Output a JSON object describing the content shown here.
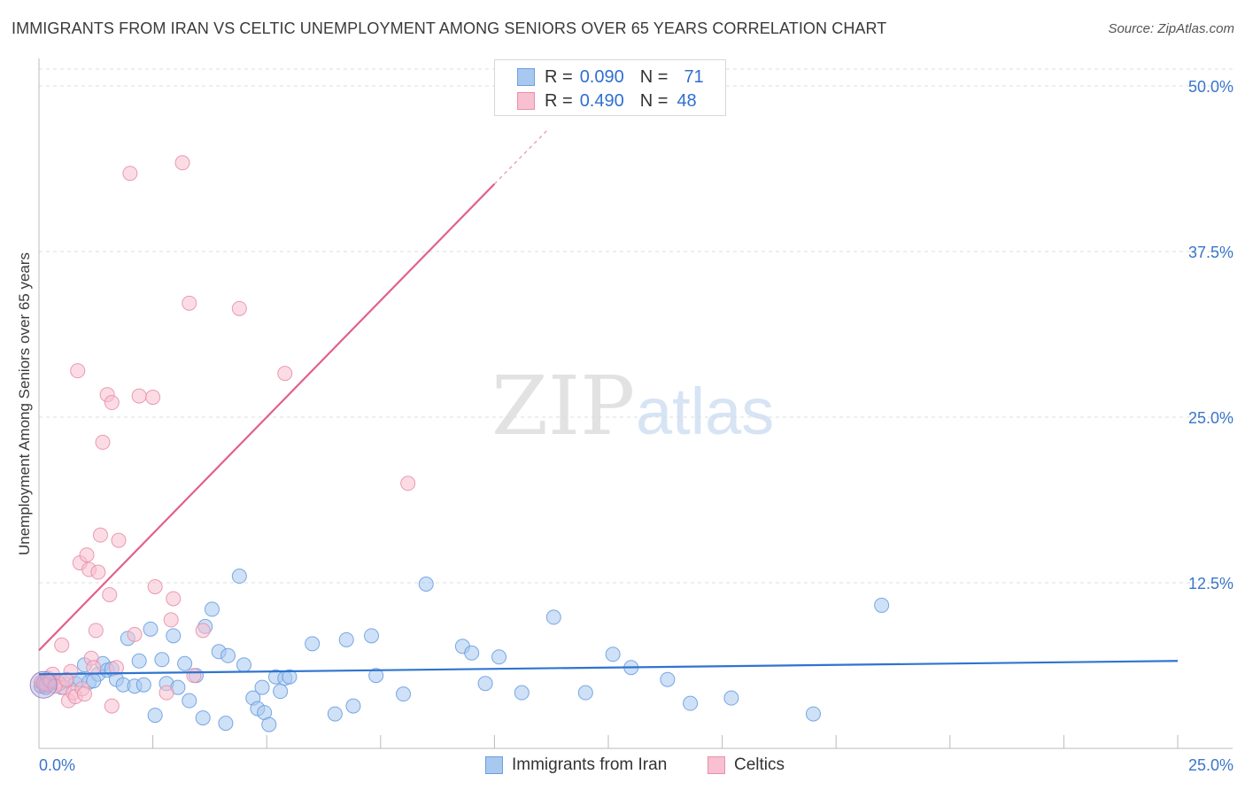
{
  "title": "IMMIGRANTS FROM IRAN VS CELTIC UNEMPLOYMENT AMONG SENIORS OVER 65 YEARS CORRELATION CHART",
  "source": "Source: ZipAtlas.com",
  "watermark": {
    "zip": "ZIP",
    "atlas": "atlas"
  },
  "legend_top": [
    {
      "r_label": "R =",
      "r_value": "0.090",
      "n_label": "N =",
      "n_value": "71",
      "color": "#a8c8f0",
      "border": "#6a9fe0"
    },
    {
      "r_label": "R =",
      "r_value": "0.490",
      "n_label": "N =",
      "n_value": "48",
      "color": "#f8c0d0",
      "border": "#e890ab"
    }
  ],
  "legend_bottom": [
    {
      "label": "Immigrants from Iran",
      "color": "#a8c8f0",
      "border": "#6a9fe0"
    },
    {
      "label": "Celtics",
      "color": "#f8c0d0",
      "border": "#e890ab"
    }
  ],
  "chart_data": {
    "type": "scatter",
    "title": "IMMIGRANTS FROM IRAN VS CELTIC UNEMPLOYMENT AMONG SENIORS OVER 65 YEARS CORRELATION CHART",
    "xlabel": "",
    "ylabel": "Unemployment Among Seniors over 65 years",
    "xlim": [
      0,
      25
    ],
    "ylim": [
      0,
      50
    ],
    "x_tick_labels": [
      "0.0%",
      "25.0%"
    ],
    "y_tick_values": [
      12.5,
      25.0,
      37.5,
      50.0
    ],
    "y_tick_labels": [
      "12.5%",
      "25.0%",
      "37.5%",
      "50.0%"
    ],
    "grid": true,
    "series": [
      {
        "name": "Immigrants from Iran",
        "color": "#6a9fe0",
        "fill": "#a8c8f0",
        "trend": {
          "x": [
            0,
            25
          ],
          "y": [
            5.6,
            6.6
          ],
          "color": "#2f74d0"
        },
        "points": [
          [
            0.05,
            4.7
          ],
          [
            0.1,
            5.0
          ],
          [
            0.2,
            4.8
          ],
          [
            0.35,
            5.0
          ],
          [
            0.5,
            4.6
          ],
          [
            0.6,
            5.1
          ],
          [
            0.8,
            4.9
          ],
          [
            0.9,
            5.2
          ],
          [
            1.0,
            6.3
          ],
          [
            1.1,
            5.0
          ],
          [
            1.3,
            5.6
          ],
          [
            1.4,
            6.4
          ],
          [
            1.5,
            5.9
          ],
          [
            1.6,
            6.0
          ],
          [
            1.7,
            5.2
          ],
          [
            1.85,
            4.8
          ],
          [
            1.95,
            8.3
          ],
          [
            2.1,
            4.7
          ],
          [
            2.2,
            6.6
          ],
          [
            2.3,
            4.8
          ],
          [
            2.45,
            9.0
          ],
          [
            2.55,
            2.5
          ],
          [
            2.7,
            6.7
          ],
          [
            2.8,
            4.9
          ],
          [
            2.95,
            8.5
          ],
          [
            3.05,
            4.6
          ],
          [
            3.2,
            6.4
          ],
          [
            3.3,
            3.6
          ],
          [
            3.45,
            5.5
          ],
          [
            3.6,
            2.3
          ],
          [
            3.65,
            9.2
          ],
          [
            3.8,
            10.5
          ],
          [
            3.95,
            7.3
          ],
          [
            4.1,
            1.9
          ],
          [
            4.15,
            7.0
          ],
          [
            4.4,
            13.0
          ],
          [
            4.5,
            6.3
          ],
          [
            4.7,
            3.8
          ],
          [
            4.8,
            3.0
          ],
          [
            4.95,
            2.7
          ],
          [
            4.9,
            4.6
          ],
          [
            5.05,
            1.8
          ],
          [
            5.2,
            5.4
          ],
          [
            5.3,
            4.3
          ],
          [
            5.4,
            5.3
          ],
          [
            5.5,
            5.4
          ],
          [
            6.0,
            7.9
          ],
          [
            6.5,
            2.6
          ],
          [
            6.75,
            8.2
          ],
          [
            6.9,
            3.2
          ],
          [
            7.3,
            8.5
          ],
          [
            7.4,
            5.5
          ],
          [
            8.0,
            4.1
          ],
          [
            8.5,
            12.4
          ],
          [
            9.3,
            7.7
          ],
          [
            9.5,
            7.2
          ],
          [
            9.8,
            4.9
          ],
          [
            10.1,
            6.9
          ],
          [
            10.6,
            4.2
          ],
          [
            11.3,
            9.9
          ],
          [
            12.0,
            4.2
          ],
          [
            12.6,
            7.1
          ],
          [
            13.0,
            6.1
          ],
          [
            13.8,
            5.2
          ],
          [
            14.3,
            3.4
          ],
          [
            15.2,
            3.8
          ],
          [
            17.0,
            2.6
          ],
          [
            18.5,
            10.8
          ],
          [
            0.15,
            4.6
          ],
          [
            0.45,
            4.9
          ],
          [
            1.2,
            5.1
          ]
        ]
      },
      {
        "name": "Celtics",
        "color": "#e890ab",
        "fill": "#f8c0d0",
        "trend": {
          "x": [
            0,
            10
          ],
          "y": [
            7.4,
            42.6
          ],
          "color": "#e2608d"
        },
        "trend_dashed": {
          "x": [
            10,
            11.2
          ],
          "y": [
            42.6,
            46.8
          ],
          "color": "#e8a0b8"
        },
        "points": [
          [
            0.05,
            5.0
          ],
          [
            0.1,
            4.9
          ],
          [
            0.2,
            5.3
          ],
          [
            0.3,
            5.6
          ],
          [
            0.4,
            5.0
          ],
          [
            0.5,
            7.8
          ],
          [
            0.55,
            4.6
          ],
          [
            0.65,
            3.6
          ],
          [
            0.7,
            5.8
          ],
          [
            0.75,
            4.2
          ],
          [
            0.8,
            3.9
          ],
          [
            0.85,
            28.5
          ],
          [
            0.9,
            14.0
          ],
          [
            0.95,
            4.5
          ],
          [
            1.0,
            4.1
          ],
          [
            1.05,
            14.6
          ],
          [
            1.1,
            13.5
          ],
          [
            1.15,
            6.8
          ],
          [
            1.2,
            6.1
          ],
          [
            1.25,
            8.9
          ],
          [
            1.3,
            13.3
          ],
          [
            1.35,
            16.1
          ],
          [
            1.4,
            23.1
          ],
          [
            1.5,
            26.7
          ],
          [
            1.55,
            11.6
          ],
          [
            1.6,
            3.2
          ],
          [
            1.6,
            26.1
          ],
          [
            1.7,
            6.1
          ],
          [
            1.75,
            15.7
          ],
          [
            2.0,
            43.4
          ],
          [
            2.1,
            8.6
          ],
          [
            2.2,
            26.6
          ],
          [
            2.5,
            26.5
          ],
          [
            2.55,
            12.2
          ],
          [
            2.8,
            4.2
          ],
          [
            2.9,
            9.7
          ],
          [
            2.95,
            11.3
          ],
          [
            3.15,
            44.2
          ],
          [
            3.3,
            33.6
          ],
          [
            3.4,
            5.5
          ],
          [
            3.6,
            8.9
          ],
          [
            4.4,
            33.2
          ],
          [
            5.4,
            28.3
          ],
          [
            8.1,
            20.0
          ],
          [
            0.15,
            4.8
          ],
          [
            0.25,
            5.1
          ],
          [
            0.35,
            4.7
          ],
          [
            0.6,
            5.2
          ]
        ]
      }
    ]
  }
}
